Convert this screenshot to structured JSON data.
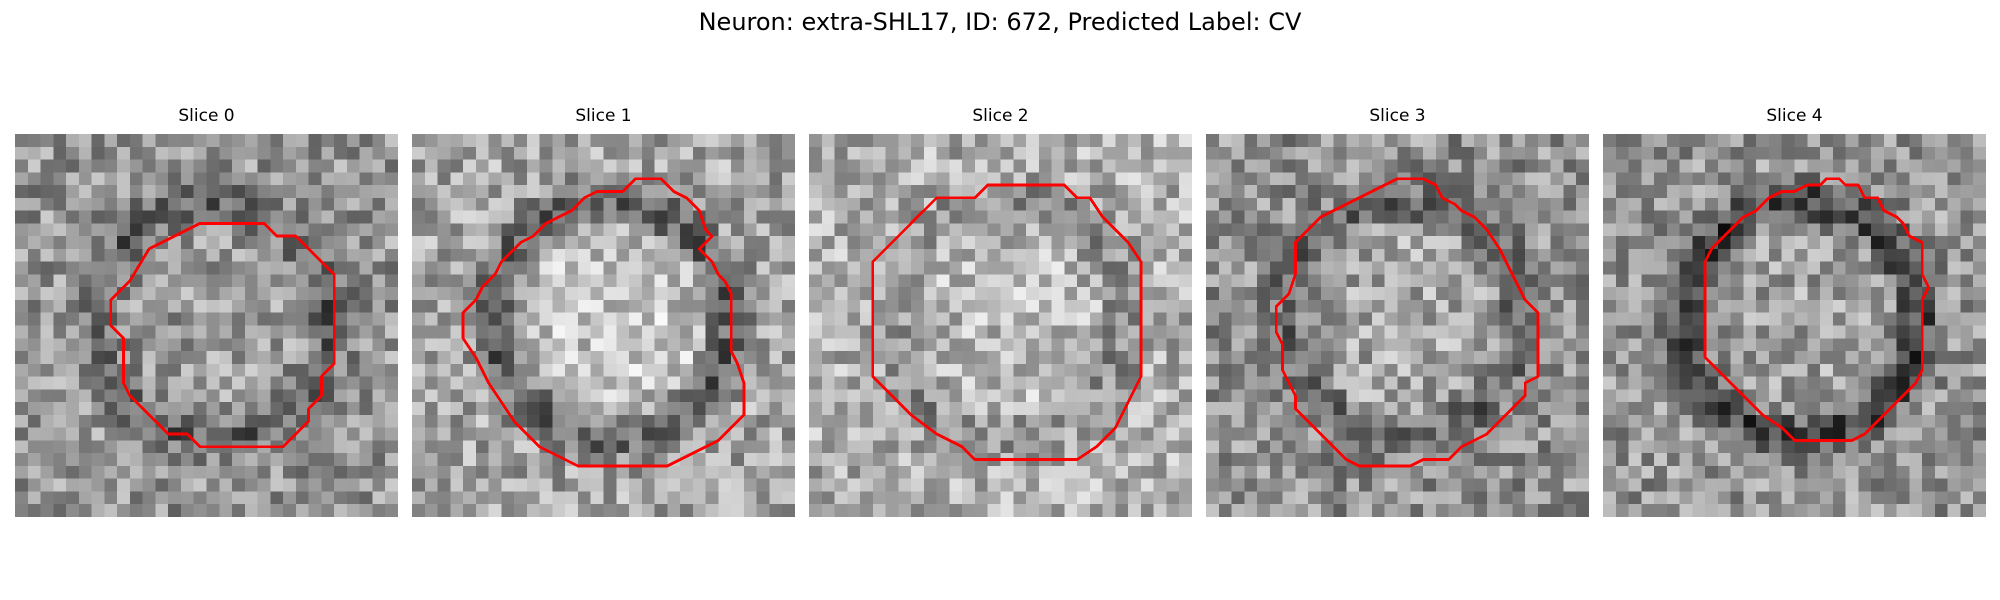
{
  "figure": {
    "suptitle": "Neuron: extra-SHL17, ID: 672, Predicted Label: CV",
    "outline_color": "#ff0000",
    "colormap": "grayscale",
    "panels": [
      {
        "title": "Slice 0",
        "seed": 11,
        "base": 150,
        "ring_darkness": 55,
        "inner_brightness": 5
      },
      {
        "title": "Slice 1",
        "seed": 23,
        "base": 165,
        "ring_darkness": 70,
        "inner_brightness": 30
      },
      {
        "title": "Slice 2",
        "seed": 37,
        "base": 175,
        "ring_darkness": 35,
        "inner_brightness": 10
      },
      {
        "title": "Slice 3",
        "seed": 41,
        "base": 145,
        "ring_darkness": 45,
        "inner_brightness": 20
      },
      {
        "title": "Slice 4",
        "seed": 53,
        "base": 150,
        "ring_darkness": 85,
        "inner_brightness": 10
      }
    ]
  }
}
